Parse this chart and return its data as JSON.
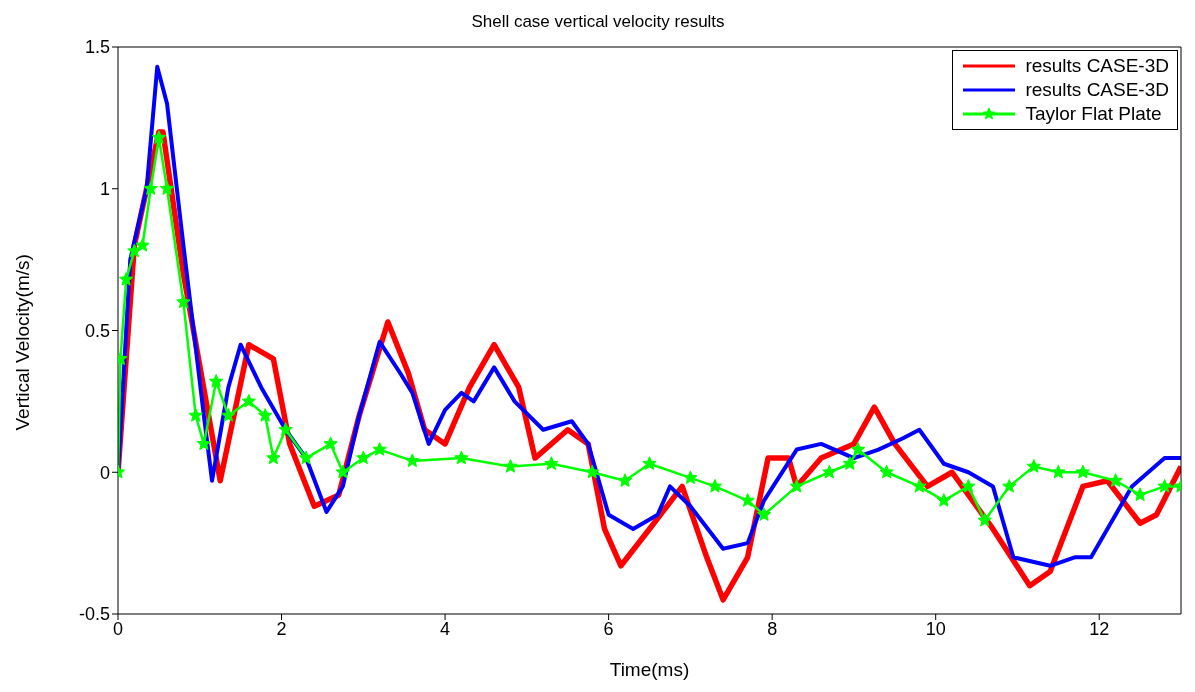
{
  "chart_data": {
    "type": "line",
    "title": "Shell case vertical velocity results",
    "xlabel": "Time(ms)",
    "ylabel": "Vertical Velocity(m/s)",
    "xlim": [
      0,
      13
    ],
    "xticks": [
      0,
      2,
      4,
      6,
      8,
      10,
      12
    ],
    "ylim": [
      -0.5,
      1.5
    ],
    "yticks": [
      -0.5,
      0,
      0.5,
      1,
      1.5
    ],
    "legend": "top right",
    "line_style": "solid",
    "series": [
      {
        "name": "results CASE-3D",
        "color": "#ff0000",
        "marker": "none",
        "x": [
          0,
          0.2,
          0.5,
          0.55,
          0.8,
          1.25,
          1.6,
          1.9,
          2.1,
          2.4,
          2.7,
          2.95,
          3.3,
          3.55,
          3.75,
          4.0,
          4.3,
          4.6,
          4.9,
          5.1,
          5.5,
          5.75,
          5.95,
          6.15,
          6.5,
          6.9,
          7.2,
          7.4,
          7.7,
          7.95,
          8.2,
          8.3,
          8.6,
          9.0,
          9.25,
          9.5,
          9.9,
          10.2,
          10.7,
          11.15,
          11.4,
          11.8,
          12.1,
          12.5,
          12.7,
          13
        ],
        "values": [
          0,
          0.8,
          1.2,
          1.2,
          0.7,
          -0.03,
          0.45,
          0.4,
          0.1,
          -0.12,
          -0.08,
          0.2,
          0.53,
          0.35,
          0.15,
          0.1,
          0.3,
          0.45,
          0.3,
          0.05,
          0.15,
          0.1,
          -0.2,
          -0.33,
          -0.2,
          -0.05,
          -0.3,
          -0.45,
          -0.3,
          0.05,
          0.05,
          -0.05,
          0.05,
          0.1,
          0.23,
          0.1,
          -0.05,
          0,
          -0.2,
          -0.4,
          -0.35,
          -0.05,
          -0.03,
          -0.18,
          -0.15,
          0.02
        ]
      },
      {
        "name": "results CASE-3D",
        "color": "#0000ff",
        "marker": "none",
        "x": [
          0,
          0.15,
          0.35,
          0.48,
          0.6,
          0.8,
          1.05,
          1.15,
          1.35,
          1.5,
          1.75,
          2.05,
          2.3,
          2.55,
          2.75,
          2.95,
          3.2,
          3.45,
          3.6,
          3.8,
          4.0,
          4.2,
          4.35,
          4.6,
          4.85,
          5.2,
          5.55,
          5.75,
          6.0,
          6.3,
          6.6,
          6.75,
          7.0,
          7.4,
          7.7,
          7.9,
          8.3,
          8.6,
          9.0,
          9.3,
          9.6,
          9.8,
          10.1,
          10.4,
          10.7,
          10.95,
          11.4,
          11.7,
          11.9,
          12.2,
          12.4,
          12.8,
          13
        ],
        "values": [
          0,
          0.75,
          1.0,
          1.43,
          1.3,
          0.8,
          0.2,
          -0.03,
          0.3,
          0.45,
          0.3,
          0.15,
          0.05,
          -0.14,
          -0.05,
          0.2,
          0.46,
          0.35,
          0.28,
          0.1,
          0.22,
          0.28,
          0.25,
          0.37,
          0.25,
          0.15,
          0.18,
          0.1,
          -0.15,
          -0.2,
          -0.15,
          -0.05,
          -0.12,
          -0.27,
          -0.25,
          -0.1,
          0.08,
          0.1,
          0.05,
          0.08,
          0.12,
          0.15,
          0.03,
          0,
          -0.05,
          -0.3,
          -0.33,
          -0.3,
          -0.3,
          -0.15,
          -0.05,
          0.05,
          0.05
        ]
      },
      {
        "name": "Taylor Flat Plate",
        "color": "#00ff00",
        "marker": "star",
        "x": [
          0,
          0.03,
          0.1,
          0.2,
          0.3,
          0.4,
          0.5,
          0.6,
          0.8,
          0.95,
          1.05,
          1.2,
          1.35,
          1.6,
          1.8,
          1.9,
          2.05,
          2.3,
          2.6,
          2.75,
          3.0,
          3.2,
          3.6,
          4.2,
          4.8,
          5.3,
          5.8,
          6.2,
          6.5,
          7.0,
          7.3,
          7.7,
          7.9,
          8.3,
          8.7,
          8.95,
          9.05,
          9.4,
          9.8,
          10.1,
          10.4,
          10.6,
          10.9,
          11.2,
          11.5,
          11.8,
          12.2,
          12.5,
          12.8,
          13
        ],
        "values": [
          0,
          0.4,
          0.68,
          0.78,
          0.8,
          1.0,
          1.18,
          1.0,
          0.6,
          0.2,
          0.1,
          0.32,
          0.2,
          0.25,
          0.2,
          0.05,
          0.15,
          0.05,
          0.1,
          0,
          0.05,
          0.08,
          0.04,
          0.05,
          0.02,
          0.03,
          0,
          -0.03,
          0.03,
          -0.02,
          -0.05,
          -0.1,
          -0.15,
          -0.05,
          0,
          0.03,
          0.08,
          0,
          -0.05,
          -0.1,
          -0.05,
          -0.17,
          -0.05,
          0.02,
          0,
          0,
          -0.03,
          -0.08,
          -0.05,
          -0.05
        ]
      }
    ]
  }
}
